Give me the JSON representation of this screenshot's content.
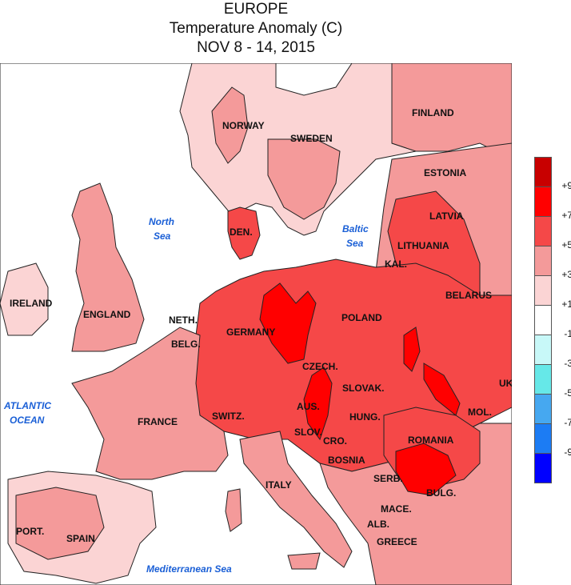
{
  "title": {
    "line1": "EUROPE",
    "line2": "Temperature Anomaly (C)",
    "line3": "NOV 8 - 14, 2015"
  },
  "map_labels": {
    "finland": "FINLAND",
    "norway": "NORWAY",
    "sweden": "SWEDEN",
    "estonia": "ESTONIA",
    "latvia": "LATVIA",
    "lithuania": "LITHUANIA",
    "kal": "KAL.",
    "belarus": "BELARUS",
    "den": "DEN.",
    "ireland": "IRELAND",
    "england": "ENGLAND",
    "neth": "NETH.",
    "belg": "BELG.",
    "germany": "GERMANY",
    "poland": "POLAND",
    "czech": "CZECH.",
    "slovak": "SLOVAK.",
    "france": "FRANCE",
    "switz": "SWITZ.",
    "aus": "AUS.",
    "hung": "HUNG.",
    "mol": "MOL.",
    "ukr": "UK",
    "slov": "SLOV.",
    "cro": "CRO.",
    "romania": "ROMANIA",
    "bosnia": "BOSNIA",
    "serb": "SERB.",
    "bulg": "BULG.",
    "italy": "ITALY",
    "mace": "MACE.",
    "alb": "ALB.",
    "greece": "GREECE",
    "port": "PORT.",
    "spain": "SPAIN"
  },
  "sea_labels": {
    "north_sea_1": "North",
    "north_sea_2": "Sea",
    "baltic_1": "Baltic",
    "baltic_2": "Sea",
    "atlantic_1": "ATLANTIC",
    "atlantic_2": "OCEAN",
    "mediterranean": "Mediterranean Sea"
  },
  "legend": {
    "ticks": [
      "+9",
      "+7",
      "+5",
      "+3",
      "+1",
      "-1",
      "-3",
      "-5",
      "-7",
      "-9"
    ],
    "colors": [
      "#c80000",
      "#ff0000",
      "#f54848",
      "#f49a9a",
      "#fbd4d4",
      "#ffffff",
      "#c8f8f8",
      "#66e8e8",
      "#46a8f0",
      "#1c7cf4",
      "#0000ff"
    ]
  },
  "colors": {
    "sea": "#ffffff",
    "land_1_3": "#fbd4d4",
    "land_3_5": "#f49a9a",
    "land_5_7": "#f54848",
    "land_7_9": "#ff0000",
    "land_9_plus": "#c80000",
    "sea_label": "#1a5fd6"
  }
}
